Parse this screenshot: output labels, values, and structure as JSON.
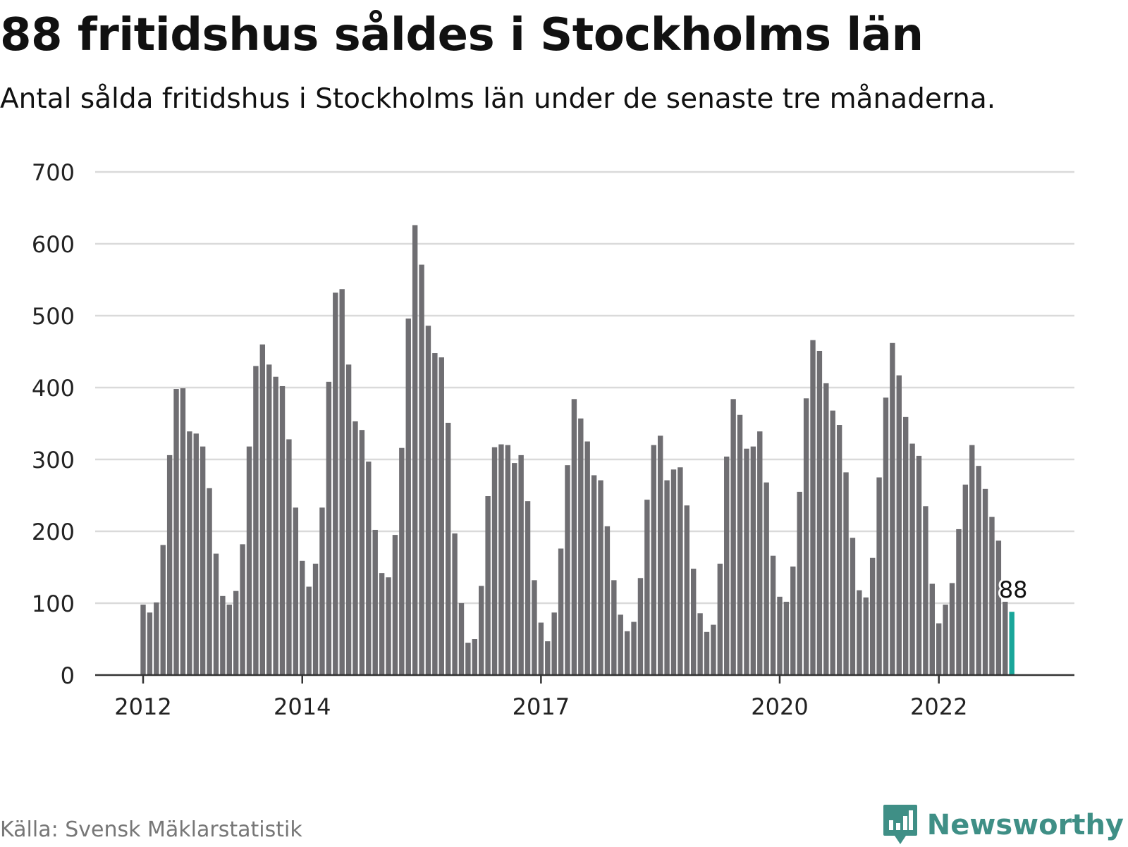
{
  "header": {
    "title": "88 fritidshus såldes i Stockholms län",
    "subtitle": "Antal sålda fritidshus i Stockholms län under de senaste tre månaderna."
  },
  "footer": {
    "source": "Källa: Svensk Mäklarstatistik",
    "brand": "Newsworthy"
  },
  "colors": {
    "bar": "#6f6e72",
    "highlight": "#1aa69a",
    "grid": "#dadada",
    "axis": "#333333",
    "brand": "#3f8f86"
  },
  "chart_data": {
    "type": "bar",
    "title": "88 fritidshus såldes i Stockholms län",
    "subtitle": "Antal sålda fritidshus i Stockholms län under de senaste tre månaderna.",
    "xlabel": "",
    "ylabel": "",
    "ylim": [
      0,
      700
    ],
    "yticks": [
      0,
      100,
      200,
      300,
      400,
      500,
      600,
      700
    ],
    "xticks": [
      "2012",
      "2014",
      "2017",
      "2020",
      "2022"
    ],
    "grid": true,
    "legend": "none",
    "values": [
      98,
      87,
      101,
      181,
      306,
      398,
      399,
      339,
      336,
      318,
      260,
      169,
      110,
      98,
      117,
      182,
      318,
      430,
      460,
      432,
      415,
      402,
      328,
      233,
      159,
      123,
      155,
      233,
      408,
      532,
      537,
      432,
      353,
      341,
      297,
      202,
      142,
      136,
      195,
      316,
      496,
      626,
      571,
      486,
      448,
      442,
      351,
      197,
      100,
      45,
      50,
      124,
      249,
      317,
      321,
      320,
      295,
      306,
      242,
      132,
      73,
      47,
      87,
      176,
      292,
      384,
      357,
      325,
      278,
      271,
      207,
      132,
      84,
      61,
      74,
      135,
      244,
      320,
      333,
      271,
      286,
      289,
      236,
      148,
      86,
      60,
      70,
      155,
      304,
      384,
      362,
      315,
      318,
      339,
      268,
      166,
      109,
      102,
      151,
      255,
      385,
      466,
      451,
      406,
      368,
      348,
      282,
      191,
      118,
      108,
      163,
      275,
      386,
      462,
      417,
      359,
      322,
      305,
      235,
      127,
      72,
      98,
      128,
      203,
      265,
      320,
      291,
      259,
      220,
      187,
      102,
      88
    ],
    "highlight_value": 88,
    "highlight_label": "88"
  }
}
